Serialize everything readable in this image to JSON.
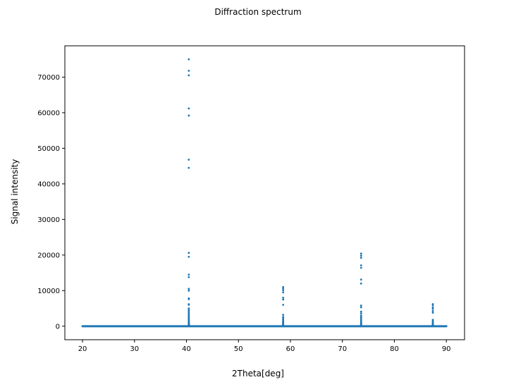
{
  "chart_data": {
    "type": "scatter",
    "title": "Diffraction spectrum",
    "xlabel": "2Theta[deg]",
    "ylabel": "Signal intensity",
    "xlim": [
      16.6,
      93.5
    ],
    "ylim": [
      -3800,
      78800
    ],
    "xticks": [
      20,
      30,
      40,
      50,
      60,
      70,
      80,
      90
    ],
    "yticks": [
      0,
      10000,
      20000,
      30000,
      40000,
      50000,
      60000,
      70000
    ],
    "x_range": [
      20,
      90
    ],
    "baseline": 0,
    "grid": false,
    "color": "#1f77b4",
    "series": [
      {
        "peaks": [
          {
            "center": 40.45,
            "values": [
              75000,
              71800,
              70500,
              61200,
              59200,
              46800,
              44500,
              20600,
              19500,
              14500,
              13800,
              10500,
              10000,
              7800,
              7600,
              6200,
              6000,
              5000,
              4600,
              4200,
              3800,
              3400,
              3000,
              2600,
              2300,
              2000,
              1700,
              1500,
              1300,
              1100,
              900,
              800,
              700,
              600,
              500,
              400,
              300,
              250,
              200,
              150,
              100
            ]
          },
          {
            "center": 58.6,
            "values": [
              11000,
              10600,
              10100,
              9500,
              8000,
              7500,
              6000,
              3200,
              2600,
              2300,
              1900,
              1600,
              1300,
              1100,
              900,
              700,
              500,
              400,
              300,
              200,
              150,
              100
            ]
          },
          {
            "center": 73.6,
            "values": [
              20400,
              19800,
              19200,
              17100,
              16400,
              13100,
              12000,
              5800,
              5300,
              4100,
              3600,
              3000,
              2600,
              2200,
              1800,
              1500,
              1200,
              1000,
              800,
              600,
              500,
              400,
              300,
              200,
              150,
              100
            ]
          },
          {
            "center": 87.4,
            "values": [
              6200,
              5900,
              5300,
              4900,
              4300,
              3800,
              1800,
              1500,
              1200,
              900,
              700,
              500,
              400,
              300,
              200,
              150,
              100
            ]
          }
        ]
      }
    ]
  }
}
